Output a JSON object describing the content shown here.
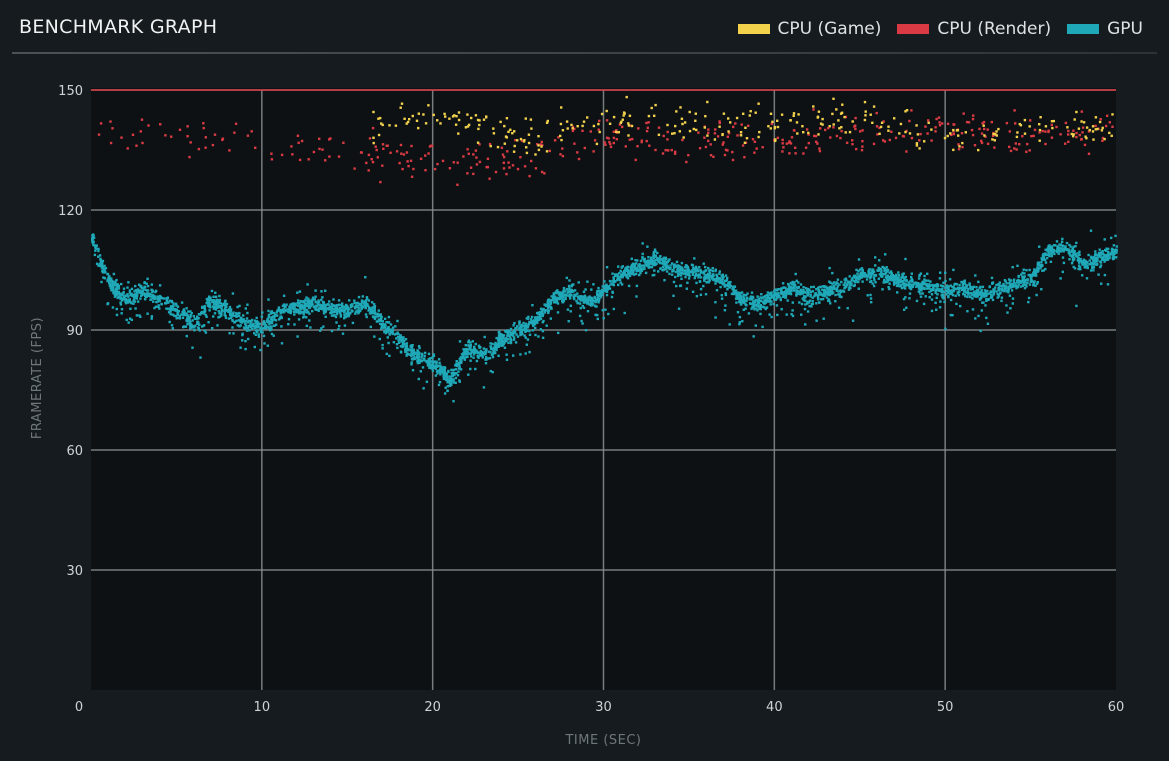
{
  "header": {
    "title": "BENCHMARK GRAPH"
  },
  "colors": {
    "background": "#151b1e",
    "plot_background": "#0d1113",
    "grid": "#8a8f92",
    "cpu_game": "#f2d14b",
    "cpu_render": "#d93a44",
    "gpu": "#1fa8b8"
  },
  "chart_data": {
    "type": "scatter",
    "title": "BENCHMARK GRAPH",
    "xlabel": "TIME (SEC)",
    "ylabel": "FRAMERATE (FPS)",
    "xlim": [
      0,
      60
    ],
    "ylim": [
      0,
      150
    ],
    "x_ticks": [
      0,
      10,
      20,
      30,
      40,
      50,
      60
    ],
    "y_ticks": [
      30,
      60,
      90,
      120,
      150
    ],
    "grid": true,
    "legend_position": "top-right",
    "cap_line_value": 150,
    "series": [
      {
        "name": "CPU (Game)",
        "color": "#f2d14b",
        "trend": [
          [
            16,
            140
          ],
          [
            20,
            145
          ],
          [
            25,
            138
          ],
          [
            30,
            143
          ],
          [
            35,
            142
          ],
          [
            40,
            141
          ],
          [
            45,
            144
          ],
          [
            50,
            138
          ],
          [
            55,
            140
          ],
          [
            60,
            142
          ]
        ]
      },
      {
        "name": "CPU (Render)",
        "color": "#d93a44",
        "trend": [
          [
            0,
            140
          ],
          [
            5,
            138
          ],
          [
            16,
            135
          ],
          [
            20,
            132
          ],
          [
            25,
            133
          ],
          [
            30,
            139
          ],
          [
            35,
            138
          ],
          [
            40,
            137
          ],
          [
            45,
            140
          ],
          [
            50,
            141
          ],
          [
            55,
            138
          ],
          [
            60,
            140
          ]
        ]
      },
      {
        "name": "GPU",
        "color": "#1fa8b8",
        "trend": [
          [
            0,
            113
          ],
          [
            1,
            102
          ],
          [
            2,
            98
          ],
          [
            3,
            100
          ],
          [
            4,
            98
          ],
          [
            5,
            95
          ],
          [
            6,
            92
          ],
          [
            7,
            98
          ],
          [
            8,
            95
          ],
          [
            9,
            92
          ],
          [
            10,
            91
          ],
          [
            11,
            95
          ],
          [
            12,
            96
          ],
          [
            13,
            97
          ],
          [
            14,
            96
          ],
          [
            15,
            95
          ],
          [
            16,
            97
          ],
          [
            17,
            92
          ],
          [
            18,
            88
          ],
          [
            19,
            84
          ],
          [
            20,
            82
          ],
          [
            21,
            78
          ],
          [
            22,
            86
          ],
          [
            23,
            84
          ],
          [
            24,
            88
          ],
          [
            25,
            90
          ],
          [
            26,
            93
          ],
          [
            27,
            98
          ],
          [
            28,
            100
          ],
          [
            29,
            97
          ],
          [
            30,
            100
          ],
          [
            31,
            104
          ],
          [
            32,
            106
          ],
          [
            33,
            108
          ],
          [
            34,
            106
          ],
          [
            35,
            105
          ],
          [
            36,
            104
          ],
          [
            37,
            103
          ],
          [
            38,
            98
          ],
          [
            39,
            97
          ],
          [
            40,
            99
          ],
          [
            41,
            101
          ],
          [
            42,
            99
          ],
          [
            43,
            100
          ],
          [
            44,
            101
          ],
          [
            45,
            104
          ],
          [
            46,
            105
          ],
          [
            47,
            103
          ],
          [
            48,
            102
          ],
          [
            49,
            101
          ],
          [
            50,
            100
          ],
          [
            51,
            101
          ],
          [
            52,
            99
          ],
          [
            53,
            101
          ],
          [
            54,
            102
          ],
          [
            55,
            103
          ],
          [
            56,
            110
          ],
          [
            57,
            111
          ],
          [
            58,
            107
          ],
          [
            59,
            108
          ],
          [
            60,
            110
          ]
        ]
      }
    ]
  }
}
